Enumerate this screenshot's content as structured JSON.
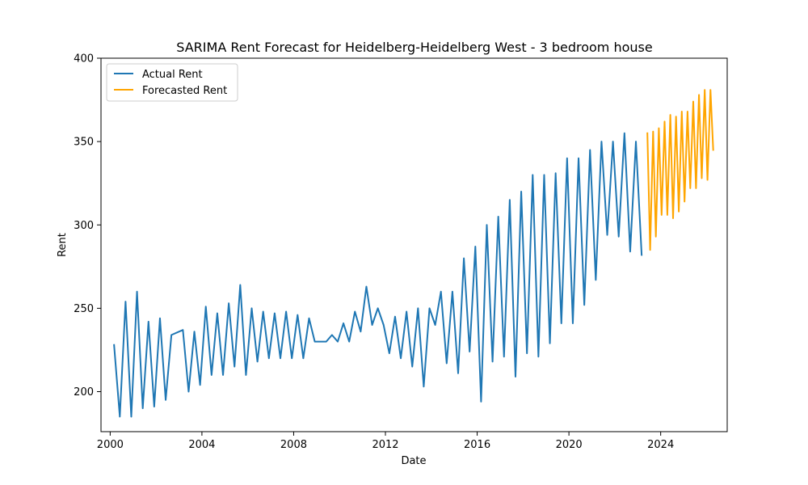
{
  "chart_data": {
    "type": "line",
    "title": "SARIMA Rent Forecast for Heidelberg-Heidelberg West - 3 bedroom house",
    "xlabel": "Date",
    "ylabel": "Rent",
    "xlim": [
      1999.6,
      2026.9
    ],
    "ylim": [
      176,
      400
    ],
    "xticks": [
      2000,
      2004,
      2008,
      2012,
      2016,
      2020,
      2024
    ],
    "yticks": [
      200,
      250,
      300,
      350,
      400
    ],
    "grid": false,
    "legend_position": "top-left",
    "series": [
      {
        "name": "Actual Rent",
        "color": "#1f77b4",
        "x": [
          2000.17,
          2000.42,
          2000.67,
          2000.92,
          2001.17,
          2001.42,
          2001.67,
          2001.92,
          2002.17,
          2002.42,
          2002.67,
          2003.17,
          2003.42,
          2003.67,
          2003.92,
          2004.17,
          2004.42,
          2004.67,
          2004.92,
          2005.17,
          2005.42,
          2005.67,
          2005.92,
          2006.17,
          2006.42,
          2006.67,
          2006.92,
          2007.17,
          2007.42,
          2007.67,
          2007.92,
          2008.17,
          2008.42,
          2008.67,
          2008.92,
          2009.17,
          2009.42,
          2009.67,
          2009.92,
          2010.17,
          2010.42,
          2010.67,
          2010.92,
          2011.17,
          2011.42,
          2011.67,
          2011.92,
          2012.17,
          2012.42,
          2012.67,
          2012.92,
          2013.17,
          2013.42,
          2013.67,
          2013.92,
          2014.17,
          2014.42,
          2014.67,
          2014.92,
          2015.17,
          2015.42,
          2015.67,
          2015.92,
          2016.17,
          2016.42,
          2016.67,
          2016.92,
          2017.17,
          2017.42,
          2017.67,
          2017.92,
          2018.17,
          2018.42,
          2018.67,
          2018.92,
          2019.17,
          2019.42,
          2019.67,
          2019.92,
          2020.17,
          2020.42,
          2020.67,
          2020.92,
          2021.17,
          2021.42,
          2021.67,
          2021.92,
          2022.17,
          2022.42,
          2022.67,
          2022.92,
          2023.17
        ],
        "y": [
          228,
          185,
          254,
          185,
          260,
          190,
          242,
          191,
          244,
          195,
          234,
          237,
          200,
          236,
          204,
          251,
          210,
          247,
          210,
          253,
          215,
          264,
          210,
          250,
          218,
          248,
          220,
          247,
          220,
          248,
          220,
          246,
          220,
          244,
          230,
          230,
          230,
          234,
          230,
          241,
          230,
          248,
          236,
          263,
          240,
          250,
          240,
          223,
          245,
          220,
          248,
          215,
          250,
          203,
          250,
          240,
          260,
          217,
          260,
          211,
          280,
          224,
          287,
          194,
          300,
          218,
          305,
          221,
          315,
          209,
          320,
          223,
          330,
          221,
          330,
          229,
          331,
          241,
          340,
          241,
          340,
          252,
          345,
          267,
          350,
          294,
          350,
          293,
          355,
          284,
          350,
          282
        ]
      },
      {
        "name": "Forecasted Rent",
        "color": "#ffa500",
        "x": [
          2023.42,
          2023.54,
          2023.67,
          2023.79,
          2023.92,
          2024.04,
          2024.17,
          2024.29,
          2024.42,
          2024.54,
          2024.67,
          2024.79,
          2024.92,
          2025.04,
          2025.17,
          2025.29,
          2025.42,
          2025.54,
          2025.67,
          2025.79,
          2025.92,
          2026.04,
          2026.17,
          2026.29
        ],
        "y": [
          355,
          285,
          356,
          293,
          358,
          306,
          362,
          306,
          366,
          304,
          365,
          308,
          368,
          314,
          368,
          322,
          374,
          322,
          378,
          328,
          381,
          327,
          381,
          345
        ]
      }
    ]
  }
}
